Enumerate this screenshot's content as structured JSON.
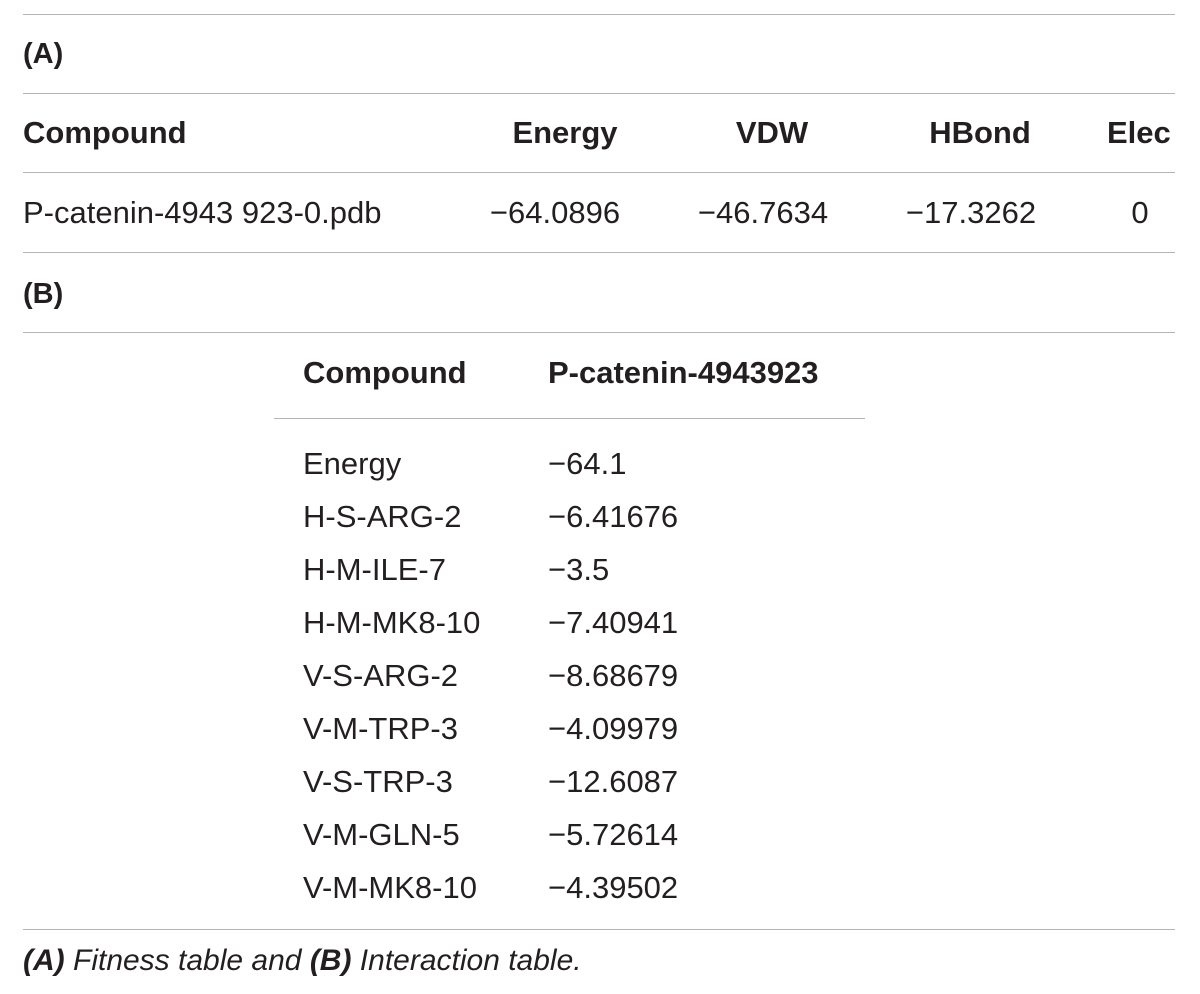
{
  "tableA": {
    "label": "(A)",
    "headers": [
      "Compound",
      "Energy",
      "VDW",
      "HBond",
      "Elec"
    ],
    "row": [
      "P-catenin-4943 923-0.pdb",
      "−64.0896",
      "−46.7634",
      "−17.3262",
      "0"
    ]
  },
  "tableB": {
    "label": "(B)",
    "headers": [
      "Compound",
      "P-catenin-4943923"
    ],
    "rows": [
      {
        "term": "Energy",
        "value": "−64.1"
      },
      {
        "term": "H-S-ARG-2",
        "value": "−6.41676"
      },
      {
        "term": "H-M-ILE-7",
        "value": "−3.5"
      },
      {
        "term": "H-M-MK8-10",
        "value": "−7.40941"
      },
      {
        "term": "V-S-ARG-2",
        "value": "−8.68679"
      },
      {
        "term": "V-M-TRP-3",
        "value": "−4.09979"
      },
      {
        "term": "V-S-TRP-3",
        "value": "−12.6087"
      },
      {
        "term": "V-M-GLN-5",
        "value": "−5.72614"
      },
      {
        "term": "V-M-MK8-10",
        "value": "−4.39502"
      }
    ]
  },
  "caption": {
    "a_label": "(A)",
    "a_text": " Fitness table and ",
    "b_label": "(B)",
    "b_text": " Interaction table."
  }
}
